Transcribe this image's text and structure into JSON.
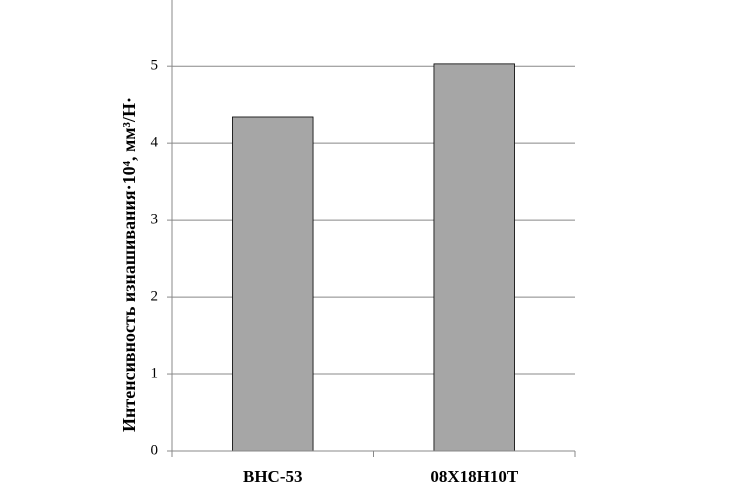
{
  "chart_data": {
    "type": "bar",
    "y_label": "Интенсивность изнашивания·10⁴, мм³/Н·",
    "categories": [
      "ВНС-53",
      "08Х18Н10Т"
    ],
    "values": [
      4.34,
      5.03
    ],
    "color": "#a6a6a6",
    "ylim": [
      0,
      5.86
    ],
    "yticks": [
      0,
      1,
      2,
      3,
      4,
      5
    ],
    "grid": true
  }
}
